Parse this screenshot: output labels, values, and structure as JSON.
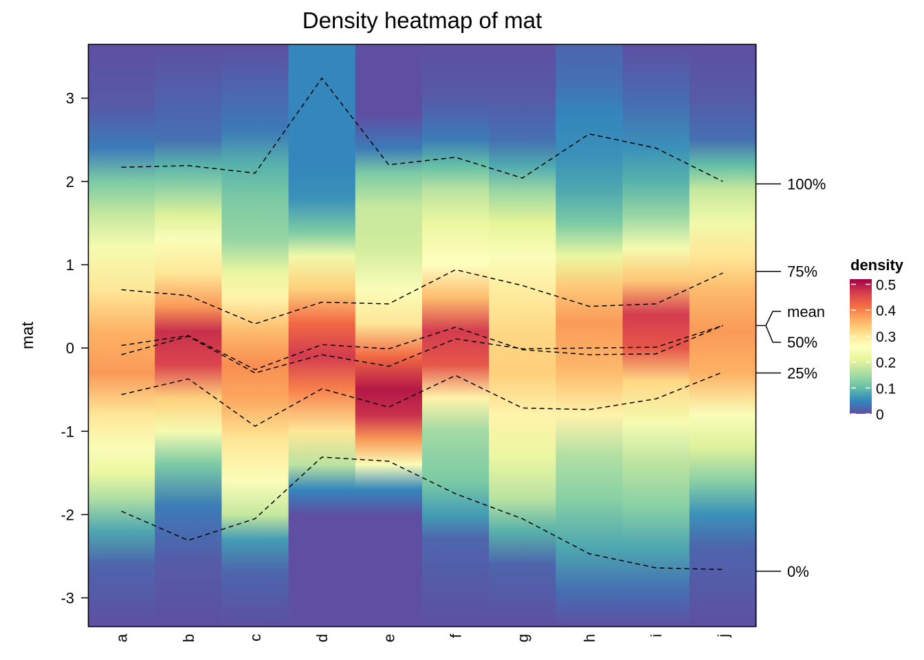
{
  "chart_data": {
    "type": "heatmap",
    "title": "Density heatmap of mat",
    "ylabel": "mat",
    "xlabel": "",
    "columns": [
      "a",
      "b",
      "c",
      "d",
      "e",
      "f",
      "g",
      "h",
      "i",
      "j"
    ],
    "y_ticks": [
      3,
      2,
      1,
      0,
      -1,
      -2,
      -3
    ],
    "ylim": [
      -3.35,
      3.65
    ],
    "quantiles": [
      {
        "name": "100%",
        "label_y": 1.97,
        "values": [
          2.17,
          2.19,
          2.1,
          3.24,
          2.2,
          2.29,
          2.04,
          2.57,
          2.4,
          2.0
        ]
      },
      {
        "name": "75%",
        "label_y": 0.92,
        "values": [
          0.7,
          0.63,
          0.29,
          0.55,
          0.53,
          0.94,
          0.75,
          0.5,
          0.53,
          0.9
        ]
      },
      {
        "name": "mean",
        "label_y": 0.44,
        "values": [
          0.03,
          0.15,
          -0.26,
          0.04,
          -0.01,
          0.25,
          -0.02,
          -0.08,
          -0.07,
          0.27
        ]
      },
      {
        "name": "50%",
        "label_y": 0.07,
        "values": [
          -0.08,
          0.14,
          -0.3,
          -0.08,
          -0.22,
          0.11,
          -0.01,
          0.0,
          0.01,
          0.27
        ]
      },
      {
        "name": "25%",
        "label_y": -0.3,
        "values": [
          -0.56,
          -0.37,
          -0.94,
          -0.49,
          -0.71,
          -0.33,
          -0.72,
          -0.74,
          -0.61,
          -0.29
        ]
      },
      {
        "name": "0%",
        "label_y": -2.68,
        "values": [
          -1.96,
          -2.31,
          -2.05,
          -1.31,
          -1.36,
          -1.75,
          -2.05,
          -2.47,
          -2.64,
          -2.66
        ]
      }
    ],
    "density_profiles": [
      [
        [
          -3.35,
          0.0
        ],
        [
          -2.6,
          0.02
        ],
        [
          -2.2,
          0.08
        ],
        [
          -1.8,
          0.16
        ],
        [
          -1.5,
          0.22
        ],
        [
          -1.2,
          0.25
        ],
        [
          -0.8,
          0.3
        ],
        [
          -0.3,
          0.38
        ],
        [
          0.2,
          0.36
        ],
        [
          0.7,
          0.3
        ],
        [
          1.2,
          0.24
        ],
        [
          1.6,
          0.18
        ],
        [
          2.0,
          0.12
        ],
        [
          2.4,
          0.04
        ],
        [
          2.9,
          0.01
        ],
        [
          3.65,
          0.0
        ]
      ],
      [
        [
          -3.35,
          0.0
        ],
        [
          -2.6,
          0.01
        ],
        [
          -1.9,
          0.04
        ],
        [
          -1.4,
          0.12
        ],
        [
          -1.0,
          0.24
        ],
        [
          -0.6,
          0.33
        ],
        [
          -0.2,
          0.46
        ],
        [
          0.2,
          0.48
        ],
        [
          0.5,
          0.38
        ],
        [
          0.9,
          0.3
        ],
        [
          1.3,
          0.25
        ],
        [
          1.6,
          0.2
        ],
        [
          1.9,
          0.14
        ],
        [
          2.2,
          0.09
        ],
        [
          2.5,
          0.03
        ],
        [
          3.65,
          0.0
        ]
      ],
      [
        [
          -3.35,
          0.0
        ],
        [
          -2.7,
          0.02
        ],
        [
          -2.3,
          0.07
        ],
        [
          -2.0,
          0.18
        ],
        [
          -1.6,
          0.25
        ],
        [
          -1.1,
          0.3
        ],
        [
          -0.6,
          0.37
        ],
        [
          -0.2,
          0.39
        ],
        [
          0.2,
          0.35
        ],
        [
          0.6,
          0.28
        ],
        [
          0.9,
          0.22
        ],
        [
          1.3,
          0.14
        ],
        [
          1.8,
          0.12
        ],
        [
          2.2,
          0.09
        ],
        [
          2.6,
          0.04
        ],
        [
          3.65,
          0.0
        ]
      ],
      [
        [
          -3.35,
          0.0
        ],
        [
          -2.0,
          0.0
        ],
        [
          -1.7,
          0.05
        ],
        [
          -1.4,
          0.17
        ],
        [
          -1.0,
          0.3
        ],
        [
          -0.5,
          0.4
        ],
        [
          -0.1,
          0.47
        ],
        [
          0.3,
          0.42
        ],
        [
          0.7,
          0.33
        ],
        [
          1.1,
          0.23
        ],
        [
          1.4,
          0.12
        ],
        [
          1.8,
          0.06
        ],
        [
          2.2,
          0.05
        ],
        [
          2.8,
          0.05
        ],
        [
          3.2,
          0.05
        ],
        [
          3.65,
          0.05
        ]
      ],
      [
        [
          -3.35,
          0.0
        ],
        [
          -2.0,
          0.0
        ],
        [
          -1.7,
          0.05
        ],
        [
          -1.4,
          0.25
        ],
        [
          -1.1,
          0.38
        ],
        [
          -0.8,
          0.48
        ],
        [
          -0.5,
          0.5
        ],
        [
          -0.1,
          0.42
        ],
        [
          0.3,
          0.3
        ],
        [
          0.7,
          0.25
        ],
        [
          1.2,
          0.19
        ],
        [
          1.7,
          0.18
        ],
        [
          2.1,
          0.12
        ],
        [
          2.4,
          0.04
        ],
        [
          2.8,
          0.0
        ],
        [
          3.65,
          0.0
        ]
      ],
      [
        [
          -3.35,
          0.0
        ],
        [
          -2.3,
          0.02
        ],
        [
          -2.0,
          0.07
        ],
        [
          -1.6,
          0.12
        ],
        [
          -1.0,
          0.15
        ],
        [
          -0.6,
          0.28
        ],
        [
          -0.2,
          0.44
        ],
        [
          0.2,
          0.47
        ],
        [
          0.6,
          0.35
        ],
        [
          1.0,
          0.26
        ],
        [
          1.5,
          0.22
        ],
        [
          1.9,
          0.17
        ],
        [
          2.2,
          0.1
        ],
        [
          2.5,
          0.04
        ],
        [
          3.0,
          0.01
        ],
        [
          3.65,
          0.0
        ]
      ],
      [
        [
          -3.35,
          0.0
        ],
        [
          -2.6,
          0.02
        ],
        [
          -2.2,
          0.09
        ],
        [
          -1.8,
          0.17
        ],
        [
          -1.3,
          0.22
        ],
        [
          -0.8,
          0.28
        ],
        [
          -0.3,
          0.33
        ],
        [
          0.2,
          0.32
        ],
        [
          0.7,
          0.29
        ],
        [
          1.1,
          0.25
        ],
        [
          1.5,
          0.21
        ],
        [
          1.9,
          0.14
        ],
        [
          2.2,
          0.08
        ],
        [
          2.5,
          0.03
        ],
        [
          3.0,
          0.01
        ],
        [
          3.65,
          0.0
        ]
      ],
      [
        [
          -3.35,
          0.0
        ],
        [
          -2.9,
          0.03
        ],
        [
          -2.4,
          0.08
        ],
        [
          -1.8,
          0.13
        ],
        [
          -1.3,
          0.16
        ],
        [
          -0.8,
          0.28
        ],
        [
          -0.3,
          0.35
        ],
        [
          0.3,
          0.38
        ],
        [
          0.7,
          0.34
        ],
        [
          1.1,
          0.22
        ],
        [
          1.5,
          0.12
        ],
        [
          1.9,
          0.08
        ],
        [
          2.3,
          0.06
        ],
        [
          2.8,
          0.05
        ],
        [
          3.2,
          0.03
        ],
        [
          3.65,
          0.02
        ]
      ],
      [
        [
          -3.35,
          0.0
        ],
        [
          -2.9,
          0.03
        ],
        [
          -2.4,
          0.08
        ],
        [
          -1.9,
          0.13
        ],
        [
          -1.4,
          0.17
        ],
        [
          -0.9,
          0.24
        ],
        [
          -0.4,
          0.32
        ],
        [
          0.0,
          0.44
        ],
        [
          0.4,
          0.47
        ],
        [
          0.8,
          0.34
        ],
        [
          1.2,
          0.24
        ],
        [
          1.6,
          0.14
        ],
        [
          2.0,
          0.09
        ],
        [
          2.4,
          0.06
        ],
        [
          2.9,
          0.03
        ],
        [
          3.65,
          0.0
        ]
      ],
      [
        [
          -3.35,
          0.0
        ],
        [
          -2.4,
          0.02
        ],
        [
          -2.0,
          0.06
        ],
        [
          -1.6,
          0.13
        ],
        [
          -1.2,
          0.2
        ],
        [
          -0.8,
          0.25
        ],
        [
          -0.3,
          0.36
        ],
        [
          0.2,
          0.38
        ],
        [
          0.7,
          0.35
        ],
        [
          1.1,
          0.3
        ],
        [
          1.5,
          0.23
        ],
        [
          1.9,
          0.18
        ],
        [
          2.2,
          0.1
        ],
        [
          2.5,
          0.03
        ],
        [
          3.0,
          0.01
        ],
        [
          3.65,
          0.0
        ]
      ]
    ],
    "legend": {
      "title": "density",
      "placement": "right",
      "ticks": [
        0.5,
        0.4,
        0.3,
        0.2,
        0.1,
        0
      ],
      "range": [
        0,
        0.52
      ]
    },
    "palette": [
      "#9E0142",
      "#D53E4F",
      "#F46D43",
      "#FDAE61",
      "#FEE08B",
      "#FFFFBF",
      "#E6F598",
      "#ABDDA4",
      "#66C2A5",
      "#3288BD",
      "#5E4FA2"
    ]
  }
}
